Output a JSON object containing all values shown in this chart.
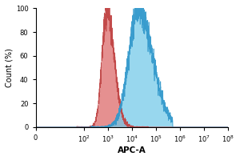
{
  "title": "",
  "xlabel": "APC-A",
  "ylabel": "Count (%)",
  "xlim": [
    1.0,
    100000000.0
  ],
  "ylim": [
    0,
    100
  ],
  "yticks": [
    0,
    20,
    40,
    60,
    80,
    100
  ],
  "xtick_values": [
    1.0,
    100.0,
    1000.0,
    10000.0,
    100000.0,
    1000000.0,
    10000000.0,
    100000000.0
  ],
  "xtick_labels": [
    "0",
    "10$^2$",
    "10$^3$",
    "10$^4$",
    "10$^5$",
    "10$^6$",
    "10$^7$",
    "10$^8$"
  ],
  "red_peak": 900,
  "red_sigma_factor": 2.2,
  "red_peak_height": 100,
  "blue_peak": 18000,
  "blue_sigma_factor": 3.5,
  "blue_peak_height": 100,
  "red_fill_color": "#e07878",
  "red_edge_color": "#c04444",
  "blue_fill_color": "#70c8e8",
  "blue_edge_color": "#3399cc",
  "background_color": "#ffffff",
  "noise_seed": 7,
  "figsize": [
    3.0,
    2.0
  ],
  "dpi": 100
}
